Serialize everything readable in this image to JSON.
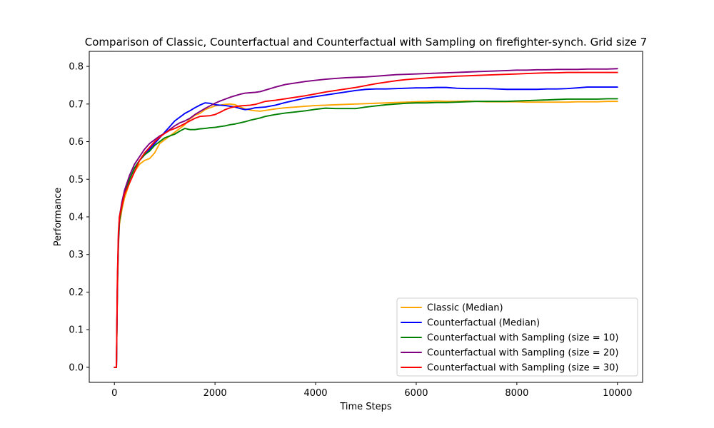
{
  "chart_data": {
    "type": "line",
    "title": "Comparison of Classic, Counterfactual and Counterfactual with Sampling on firefighter-synch. Grid size 7",
    "xlabel": "Time Steps",
    "ylabel": "Performance",
    "xlim": [
      -500,
      10500
    ],
    "ylim": [
      -0.04,
      0.84
    ],
    "xticks": [
      0,
      2000,
      4000,
      6000,
      8000,
      10000
    ],
    "xtick_labels": [
      "0",
      "2000",
      "4000",
      "6000",
      "8000",
      "10000"
    ],
    "yticks": [
      0.0,
      0.1,
      0.2,
      0.3,
      0.4,
      0.5,
      0.6,
      0.7,
      0.8
    ],
    "ytick_labels": [
      "0.0",
      "0.1",
      "0.2",
      "0.3",
      "0.4",
      "0.5",
      "0.6",
      "0.7",
      "0.8"
    ],
    "grid": false,
    "legend_position": "lower-right",
    "series": [
      {
        "name": "Classic (Median)",
        "color": "#ffa500",
        "x": [
          0,
          40,
          60,
          80,
          100,
          150,
          200,
          300,
          400,
          500,
          600,
          700,
          800,
          900,
          1000,
          1100,
          1200,
          1300,
          1400,
          1500,
          1600,
          1700,
          1800,
          1900,
          2000,
          2100,
          2200,
          2300,
          2400,
          2500,
          2600,
          2700,
          2800,
          2900,
          3000,
          3200,
          3400,
          3600,
          3800,
          4000,
          4200,
          4400,
          4600,
          4800,
          5000,
          5200,
          5400,
          5600,
          5800,
          6000,
          6200,
          6400,
          6600,
          6800,
          7000,
          7200,
          7400,
          7600,
          7800,
          8000,
          8200,
          8400,
          8600,
          8800,
          9000,
          9200,
          9400,
          9600,
          9800,
          10000
        ],
        "values": [
          0.0,
          0.0,
          0.2,
          0.32,
          0.38,
          0.42,
          0.45,
          0.49,
          0.52,
          0.54,
          0.55,
          0.555,
          0.57,
          0.595,
          0.605,
          0.615,
          0.625,
          0.635,
          0.645,
          0.66,
          0.67,
          0.675,
          0.685,
          0.69,
          0.695,
          0.697,
          0.699,
          0.7,
          0.698,
          0.692,
          0.687,
          0.684,
          0.682,
          0.681,
          0.683,
          0.687,
          0.69,
          0.692,
          0.694,
          0.696,
          0.697,
          0.698,
          0.699,
          0.7,
          0.701,
          0.702,
          0.703,
          0.704,
          0.705,
          0.706,
          0.707,
          0.708,
          0.707,
          0.707,
          0.708,
          0.707,
          0.706,
          0.706,
          0.706,
          0.706,
          0.705,
          0.705,
          0.705,
          0.705,
          0.705,
          0.706,
          0.706,
          0.706,
          0.707,
          0.707
        ]
      },
      {
        "name": "Counterfactual (Median)",
        "color": "#0000ff",
        "x": [
          0,
          40,
          60,
          80,
          100,
          150,
          200,
          300,
          400,
          500,
          600,
          700,
          800,
          900,
          1000,
          1100,
          1200,
          1300,
          1400,
          1500,
          1600,
          1700,
          1800,
          1900,
          2000,
          2100,
          2200,
          2300,
          2400,
          2500,
          2600,
          2700,
          2800,
          2900,
          3000,
          3200,
          3400,
          3600,
          3800,
          4000,
          4200,
          4400,
          4600,
          4800,
          5000,
          5200,
          5400,
          5600,
          5800,
          6000,
          6200,
          6400,
          6600,
          6800,
          7000,
          7200,
          7400,
          7600,
          7800,
          8000,
          8200,
          8400,
          8600,
          8800,
          9000,
          9200,
          9400,
          9600,
          9800,
          10000
        ],
        "values": [
          0.0,
          0.0,
          0.22,
          0.33,
          0.39,
          0.43,
          0.46,
          0.5,
          0.53,
          0.55,
          0.565,
          0.58,
          0.595,
          0.61,
          0.625,
          0.64,
          0.655,
          0.665,
          0.675,
          0.682,
          0.69,
          0.697,
          0.703,
          0.702,
          0.698,
          0.697,
          0.696,
          0.694,
          0.692,
          0.688,
          0.685,
          0.687,
          0.69,
          0.691,
          0.692,
          0.697,
          0.704,
          0.71,
          0.716,
          0.72,
          0.724,
          0.728,
          0.732,
          0.736,
          0.739,
          0.74,
          0.74,
          0.741,
          0.742,
          0.743,
          0.743,
          0.744,
          0.744,
          0.742,
          0.741,
          0.741,
          0.741,
          0.74,
          0.739,
          0.739,
          0.739,
          0.739,
          0.74,
          0.74,
          0.741,
          0.743,
          0.745,
          0.745,
          0.745,
          0.745
        ]
      },
      {
        "name": "Counterfactual with Sampling (size = 10)",
        "color": "#008000",
        "x": [
          0,
          40,
          60,
          80,
          100,
          150,
          200,
          300,
          400,
          500,
          600,
          700,
          800,
          900,
          1000,
          1100,
          1200,
          1300,
          1400,
          1500,
          1600,
          1700,
          1800,
          1900,
          2000,
          2100,
          2200,
          2300,
          2400,
          2500,
          2600,
          2700,
          2800,
          2900,
          3000,
          3200,
          3400,
          3600,
          3800,
          4000,
          4200,
          4400,
          4600,
          4800,
          5000,
          5200,
          5400,
          5600,
          5800,
          6000,
          6200,
          6400,
          6600,
          6800,
          7000,
          7200,
          7400,
          7600,
          7800,
          8000,
          8200,
          8400,
          8600,
          8800,
          9000,
          9200,
          9400,
          9600,
          9800,
          10000
        ],
        "values": [
          0.0,
          0.0,
          0.22,
          0.34,
          0.39,
          0.43,
          0.46,
          0.5,
          0.53,
          0.55,
          0.565,
          0.575,
          0.59,
          0.6,
          0.61,
          0.615,
          0.62,
          0.628,
          0.635,
          0.632,
          0.632,
          0.634,
          0.635,
          0.637,
          0.638,
          0.64,
          0.642,
          0.645,
          0.647,
          0.65,
          0.653,
          0.657,
          0.66,
          0.663,
          0.667,
          0.672,
          0.676,
          0.679,
          0.682,
          0.686,
          0.689,
          0.688,
          0.688,
          0.688,
          0.692,
          0.695,
          0.698,
          0.7,
          0.702,
          0.703,
          0.703,
          0.704,
          0.704,
          0.705,
          0.706,
          0.707,
          0.707,
          0.707,
          0.707,
          0.708,
          0.709,
          0.71,
          0.711,
          0.712,
          0.713,
          0.713,
          0.713,
          0.713,
          0.714,
          0.714
        ]
      },
      {
        "name": "Counterfactual with Sampling (size = 20)",
        "color": "#800080",
        "x": [
          0,
          40,
          60,
          80,
          100,
          150,
          200,
          300,
          400,
          500,
          600,
          700,
          800,
          900,
          1000,
          1100,
          1200,
          1300,
          1400,
          1500,
          1600,
          1700,
          1800,
          1900,
          2000,
          2100,
          2200,
          2300,
          2400,
          2500,
          2600,
          2700,
          2800,
          2900,
          3000,
          3200,
          3400,
          3600,
          3800,
          4000,
          4200,
          4400,
          4600,
          4800,
          5000,
          5200,
          5400,
          5600,
          5800,
          6000,
          6200,
          6400,
          6600,
          6800,
          7000,
          7200,
          7400,
          7600,
          7800,
          8000,
          8200,
          8400,
          8600,
          8800,
          9000,
          9200,
          9400,
          9600,
          9800,
          10000
        ],
        "values": [
          0.0,
          0.0,
          0.23,
          0.35,
          0.4,
          0.44,
          0.47,
          0.51,
          0.54,
          0.56,
          0.58,
          0.595,
          0.605,
          0.615,
          0.622,
          0.632,
          0.642,
          0.65,
          0.655,
          0.662,
          0.672,
          0.68,
          0.688,
          0.695,
          0.702,
          0.708,
          0.713,
          0.718,
          0.722,
          0.726,
          0.729,
          0.73,
          0.731,
          0.733,
          0.737,
          0.745,
          0.752,
          0.756,
          0.76,
          0.763,
          0.766,
          0.768,
          0.77,
          0.771,
          0.772,
          0.774,
          0.776,
          0.778,
          0.779,
          0.78,
          0.781,
          0.782,
          0.783,
          0.784,
          0.785,
          0.786,
          0.787,
          0.788,
          0.789,
          0.79,
          0.79,
          0.791,
          0.791,
          0.792,
          0.792,
          0.792,
          0.793,
          0.793,
          0.793,
          0.794
        ]
      },
      {
        "name": "Counterfactual with Sampling (size = 30)",
        "color": "#ff0000",
        "x": [
          0,
          40,
          60,
          80,
          100,
          150,
          200,
          300,
          400,
          500,
          600,
          700,
          800,
          900,
          1000,
          1100,
          1200,
          1300,
          1400,
          1500,
          1600,
          1700,
          1800,
          1900,
          2000,
          2100,
          2200,
          2300,
          2400,
          2500,
          2600,
          2700,
          2800,
          2900,
          3000,
          3200,
          3400,
          3600,
          3800,
          4000,
          4200,
          4400,
          4600,
          4800,
          5000,
          5200,
          5400,
          5600,
          5800,
          6000,
          6200,
          6400,
          6600,
          6800,
          7000,
          7200,
          7400,
          7600,
          7800,
          8000,
          8200,
          8400,
          8600,
          8800,
          9000,
          9200,
          9400,
          9600,
          9800,
          10000
        ],
        "values": [
          0.0,
          0.0,
          0.24,
          0.36,
          0.4,
          0.43,
          0.46,
          0.49,
          0.52,
          0.55,
          0.57,
          0.585,
          0.6,
          0.612,
          0.622,
          0.63,
          0.635,
          0.641,
          0.648,
          0.655,
          0.662,
          0.667,
          0.668,
          0.669,
          0.672,
          0.678,
          0.685,
          0.69,
          0.693,
          0.695,
          0.696,
          0.697,
          0.699,
          0.703,
          0.707,
          0.71,
          0.714,
          0.718,
          0.722,
          0.727,
          0.732,
          0.736,
          0.74,
          0.744,
          0.749,
          0.754,
          0.758,
          0.762,
          0.765,
          0.767,
          0.769,
          0.771,
          0.772,
          0.774,
          0.775,
          0.776,
          0.777,
          0.778,
          0.779,
          0.78,
          0.781,
          0.782,
          0.783,
          0.783,
          0.784,
          0.784,
          0.784,
          0.784,
          0.784,
          0.784
        ]
      }
    ]
  }
}
